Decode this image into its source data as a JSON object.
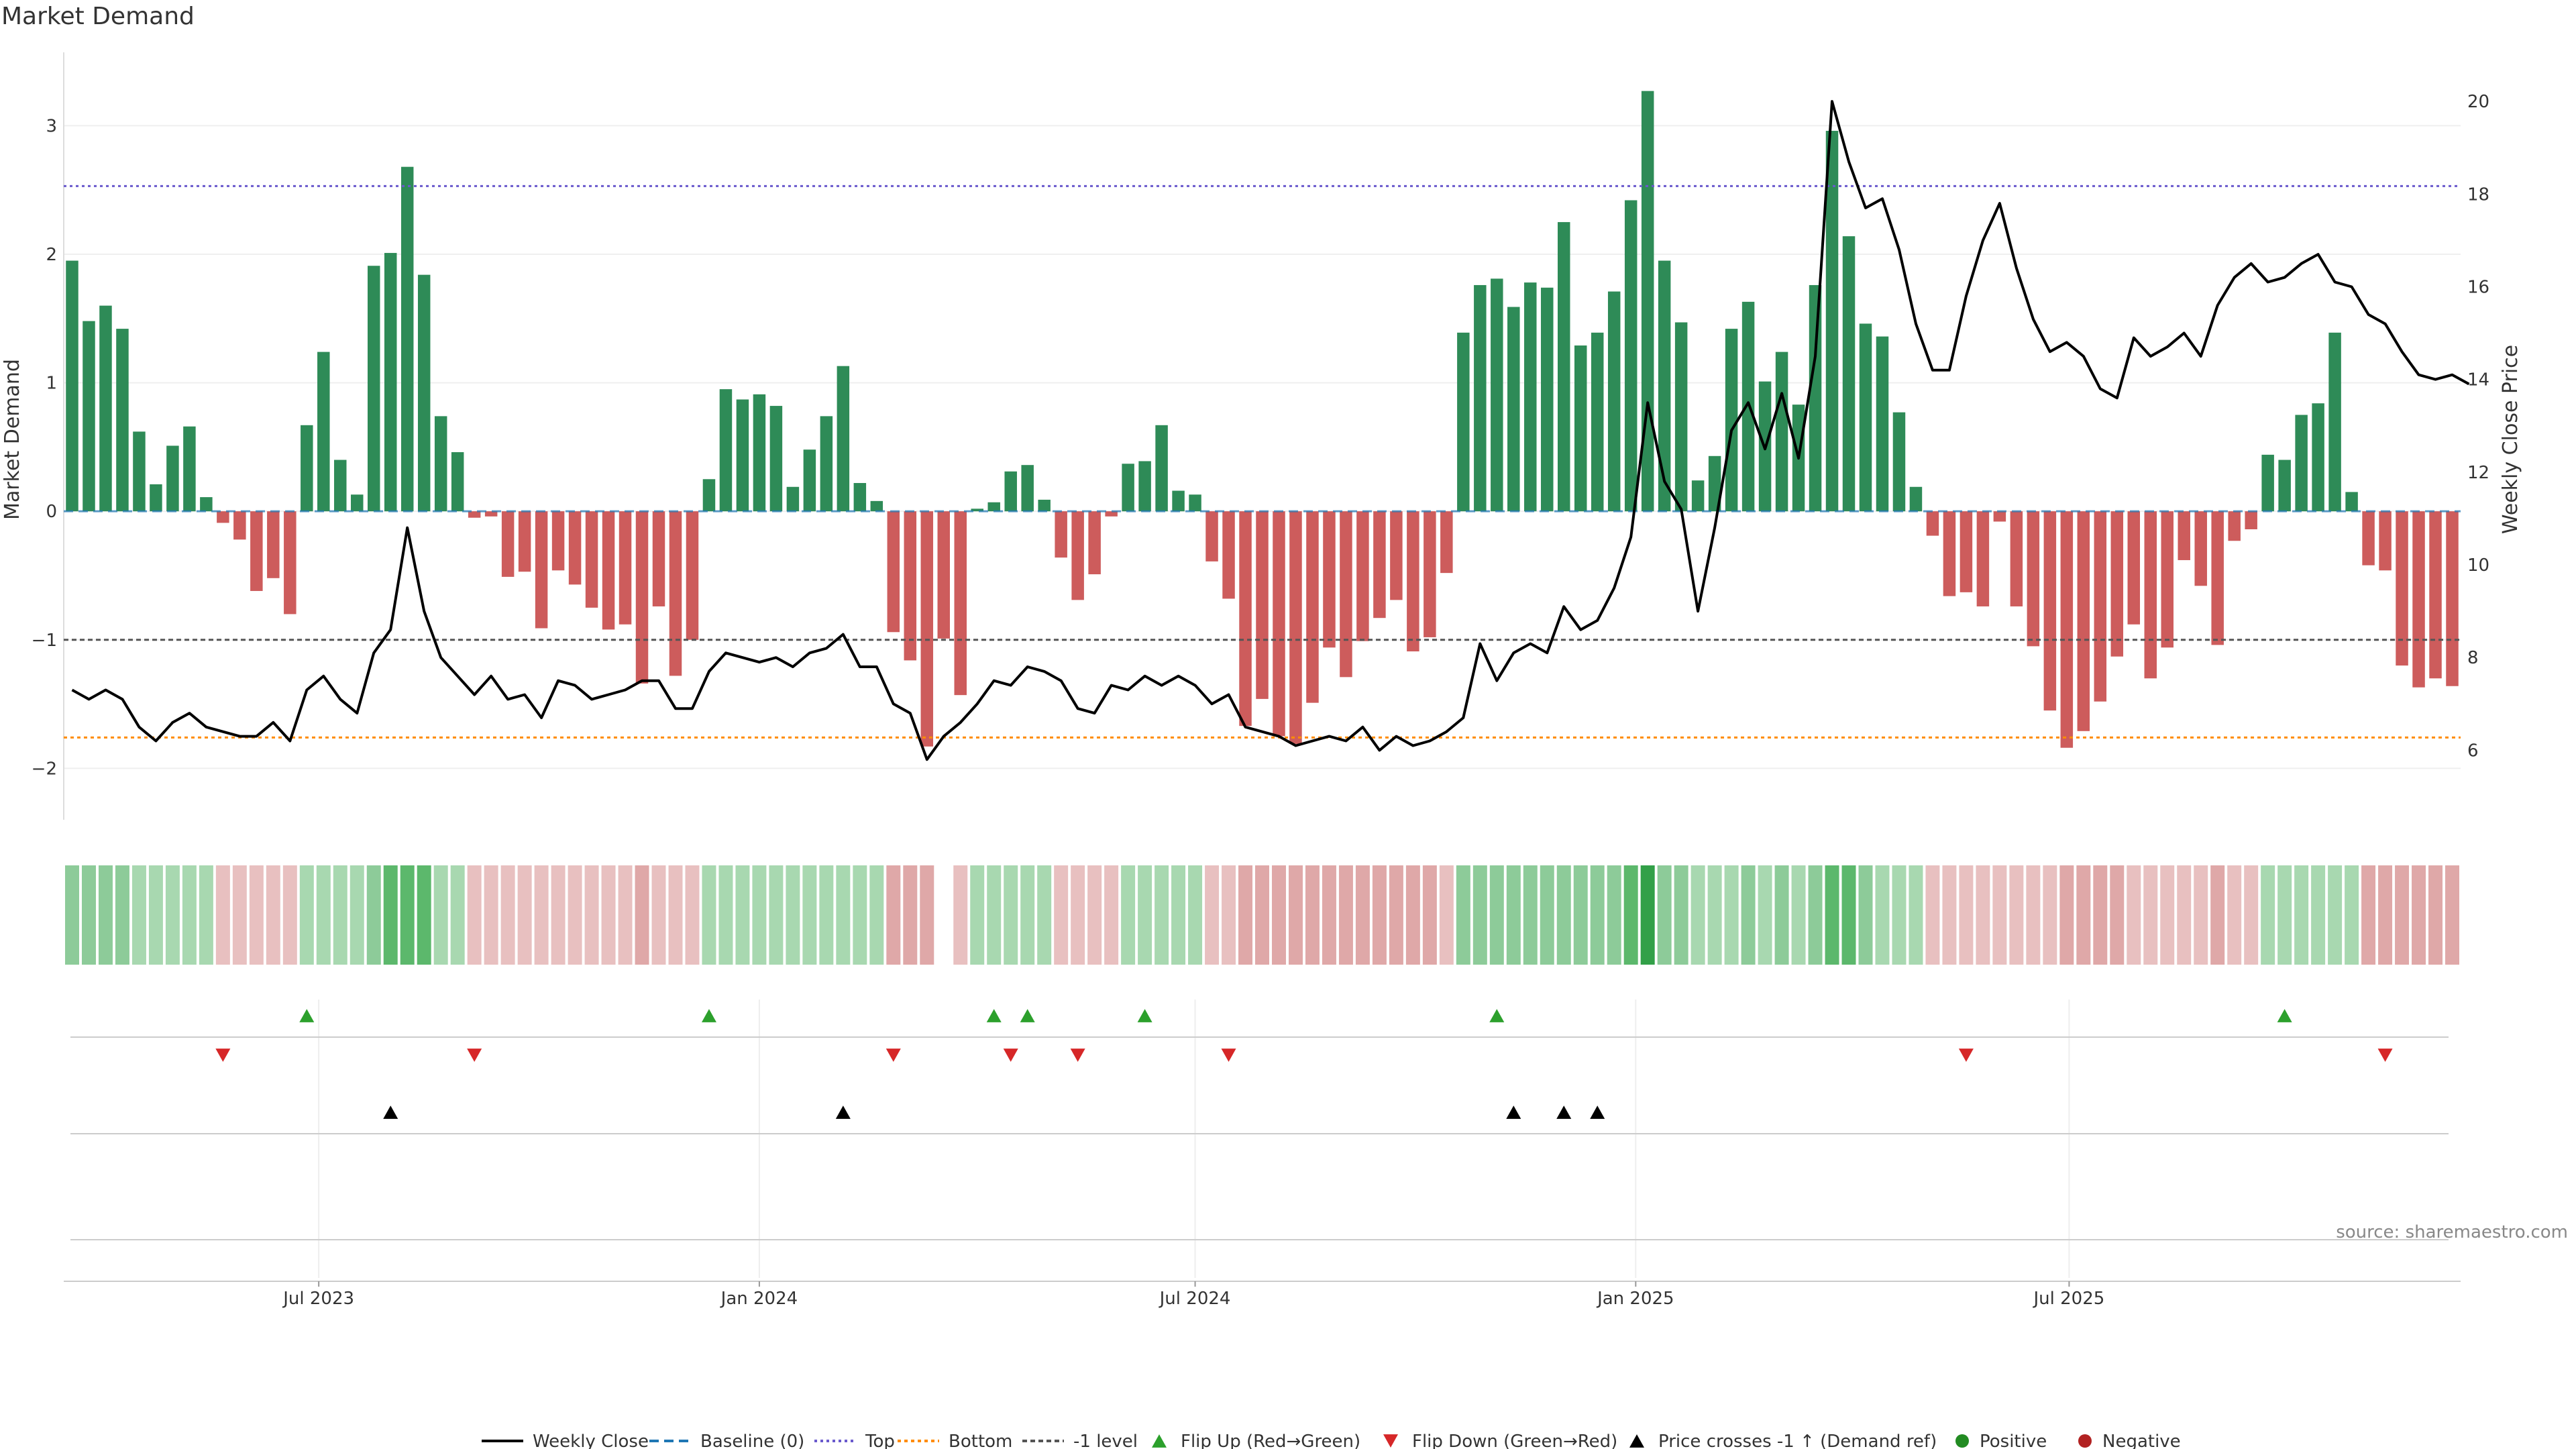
{
  "chart_data": {
    "type": "bar",
    "title": "Market Demand",
    "ylabel": "Market Demand",
    "y2label": "Weekly Close Price",
    "ylim": [
      -2.4,
      3.55
    ],
    "y2lim": [
      4.5,
      21.0
    ],
    "yticks": [
      -2,
      -1,
      0,
      1,
      2,
      3
    ],
    "y2ticks": [
      6,
      8,
      10,
      12,
      14,
      16,
      18,
      20
    ],
    "reference_lines": {
      "baseline": 0,
      "top": 2.53,
      "bottom": -1.76,
      "minus1": -1
    },
    "x_dates": [
      "2023-03-20",
      "2023-03-27",
      "2023-04-03",
      "2023-04-10",
      "2023-04-17",
      "2023-04-24",
      "2023-05-01",
      "2023-05-08",
      "2023-05-15",
      "2023-05-22",
      "2023-05-29",
      "2023-06-05",
      "2023-06-12",
      "2023-06-19",
      "2023-06-26",
      "2023-07-03",
      "2023-07-10",
      "2023-07-17",
      "2023-07-24",
      "2023-07-31",
      "2023-08-07",
      "2023-08-14",
      "2023-08-21",
      "2023-08-28",
      "2023-09-04",
      "2023-09-11",
      "2023-09-18",
      "2023-09-25",
      "2023-10-02",
      "2023-10-09",
      "2023-10-16",
      "2023-10-23",
      "2023-10-30",
      "2023-11-06",
      "2023-11-13",
      "2023-11-20",
      "2023-11-27",
      "2023-12-04",
      "2023-12-11",
      "2023-12-18",
      "2023-12-25",
      "2024-01-01",
      "2024-01-08",
      "2024-01-15",
      "2024-01-22",
      "2024-01-29",
      "2024-02-05",
      "2024-02-12",
      "2024-02-19",
      "2024-02-26",
      "2024-03-04",
      "2024-03-11",
      "2024-03-18",
      "2024-03-25",
      "2024-04-01",
      "2024-04-08",
      "2024-04-15",
      "2024-04-22",
      "2024-04-29",
      "2024-05-06",
      "2024-05-13",
      "2024-05-20",
      "2024-05-27",
      "2024-06-03",
      "2024-06-10",
      "2024-06-17",
      "2024-06-24",
      "2024-07-01",
      "2024-07-08",
      "2024-07-15",
      "2024-07-22",
      "2024-07-29",
      "2024-08-05",
      "2024-08-12",
      "2024-08-19",
      "2024-08-26",
      "2024-09-02",
      "2024-09-09",
      "2024-09-16",
      "2024-09-23",
      "2024-09-30",
      "2024-10-07",
      "2024-10-14",
      "2024-10-21",
      "2024-10-28",
      "2024-11-04",
      "2024-11-11",
      "2024-11-18",
      "2024-11-25",
      "2024-12-02",
      "2024-12-09",
      "2024-12-16",
      "2024-12-23",
      "2024-12-30",
      "2025-01-06",
      "2025-01-13",
      "2025-01-20",
      "2025-01-27",
      "2025-02-03",
      "2025-02-10",
      "2025-02-17",
      "2025-02-24",
      "2025-03-03",
      "2025-03-10",
      "2025-03-17",
      "2025-03-24",
      "2025-03-31",
      "2025-04-07",
      "2025-04-14",
      "2025-04-21",
      "2025-04-28",
      "2025-05-05",
      "2025-05-12",
      "2025-05-19",
      "2025-05-26",
      "2025-06-02",
      "2025-06-09",
      "2025-06-16",
      "2025-06-23",
      "2025-06-30",
      "2025-07-07",
      "2025-07-14",
      "2025-07-21",
      "2025-07-28",
      "2025-08-04",
      "2025-08-11",
      "2025-08-18",
      "2025-08-25",
      "2025-09-01",
      "2025-09-08",
      "2025-09-15",
      "2025-09-22",
      "2025-09-29",
      "2025-10-06",
      "2025-10-13",
      "2025-10-20",
      "2025-10-27",
      "2025-11-03",
      "2025-11-10",
      "2025-11-17",
      "2025-11-24",
      "2025-12-01",
      "2025-12-08",
      "2025-12-15"
    ],
    "demand": [
      1.95,
      1.48,
      1.6,
      1.42,
      0.62,
      0.21,
      0.51,
      0.66,
      0.11,
      -0.09,
      -0.22,
      -0.62,
      -0.52,
      -0.8,
      0.67,
      1.24,
      0.4,
      0.13,
      1.91,
      2.01,
      2.68,
      1.84,
      0.74,
      0.46,
      -0.05,
      -0.04,
      -0.51,
      -0.47,
      -0.91,
      -0.46,
      -0.57,
      -0.75,
      -0.92,
      -0.88,
      -1.34,
      -0.74,
      -1.28,
      -1.0,
      0.25,
      0.95,
      0.87,
      0.91,
      0.82,
      0.19,
      0.48,
      0.74,
      1.13,
      0.22,
      0.08,
      -0.94,
      -1.16,
      -1.83,
      -0.99,
      -1.43,
      0.02,
      0.07,
      0.31,
      0.36,
      0.09,
      -0.36,
      -0.69,
      -0.49,
      -0.04,
      0.37,
      0.39,
      0.67,
      0.16,
      0.13,
      -0.39,
      -0.68,
      -1.67,
      -1.46,
      -1.75,
      -1.81,
      -1.49,
      -1.06,
      -1.29,
      -1.01,
      -0.83,
      -0.69,
      -1.09,
      -0.98,
      -0.48,
      1.39,
      1.76,
      1.81,
      1.59,
      1.78,
      1.74,
      2.25,
      1.29,
      1.39,
      1.71,
      2.42,
      3.27,
      1.95,
      1.47,
      0.24,
      0.43,
      1.42,
      1.63,
      1.01,
      1.24,
      0.83,
      1.76,
      2.96,
      2.14,
      1.46,
      1.36,
      0.77,
      0.19,
      -0.19,
      -0.66,
      -0.63,
      -0.74,
      -0.08,
      -0.74,
      -1.05,
      -1.55,
      -1.84,
      -1.71,
      -1.48,
      -1.13,
      -0.88,
      -1.3,
      -1.06,
      -0.38,
      -0.58,
      -1.04,
      -0.23,
      -0.14,
      0.44,
      0.4,
      0.75,
      0.84,
      1.39,
      0.15,
      -0.42,
      -0.46,
      -1.2,
      -1.37,
      -1.3,
      -1.36
    ],
    "close": [
      7.3,
      7.1,
      7.3,
      7.1,
      6.5,
      6.2,
      6.6,
      6.8,
      6.5,
      6.4,
      6.3,
      6.3,
      6.6,
      6.2,
      7.3,
      7.6,
      7.1,
      6.8,
      8.1,
      8.6,
      10.8,
      9.0,
      8.0,
      7.6,
      7.2,
      7.6,
      7.1,
      7.2,
      6.7,
      7.5,
      7.4,
      7.1,
      7.2,
      7.3,
      7.5,
      7.5,
      6.9,
      6.9,
      7.7,
      8.1,
      8.0,
      7.9,
      8.0,
      7.8,
      8.1,
      8.2,
      8.5,
      7.8,
      7.8,
      7.0,
      6.8,
      5.8,
      6.3,
      6.6,
      7.0,
      7.5,
      7.4,
      7.8,
      7.7,
      7.5,
      6.9,
      6.8,
      7.4,
      7.3,
      7.6,
      7.4,
      7.6,
      7.4,
      7.0,
      7.2,
      6.5,
      6.4,
      6.3,
      6.1,
      6.2,
      6.3,
      6.2,
      6.5,
      6.0,
      6.3,
      6.1,
      6.2,
      6.4,
      6.7,
      8.3,
      7.5,
      8.1,
      8.3,
      8.1,
      9.1,
      8.6,
      8.8,
      9.5,
      10.6,
      13.5,
      11.8,
      11.2,
      9.0,
      10.8,
      12.9,
      13.5,
      12.5,
      13.7,
      12.3,
      14.5,
      20.0,
      18.7,
      17.7,
      17.9,
      16.8,
      15.2,
      14.2,
      14.2,
      15.8,
      17.0,
      17.8,
      16.4,
      15.3,
      14.6,
      14.8,
      14.5,
      13.8,
      13.6,
      14.9,
      14.5,
      14.7,
      15.0,
      14.5,
      15.6,
      16.2,
      16.5,
      16.1,
      16.2,
      16.5,
      16.7,
      16.1,
      16.0,
      15.4,
      15.2,
      14.6,
      14.1,
      14.0,
      14.1,
      13.9
    ],
    "shade_levels": [
      2,
      2,
      2,
      2,
      1,
      1,
      1,
      1,
      1,
      1,
      1,
      1,
      1,
      1,
      1,
      1,
      1,
      1,
      2,
      3,
      3,
      3,
      1,
      1,
      1,
      1,
      1,
      1,
      1,
      1,
      1,
      1,
      1,
      1,
      2,
      1,
      1,
      1,
      1,
      1,
      1,
      1,
      1,
      1,
      1,
      1,
      1,
      1,
      1,
      2,
      2,
      2,
      null,
      1,
      1,
      1,
      1,
      1,
      1,
      1,
      1,
      1,
      1,
      1,
      1,
      1,
      1,
      1,
      1,
      1,
      2,
      2,
      2,
      2,
      2,
      2,
      2,
      2,
      2,
      2,
      2,
      2,
      1,
      2,
      2,
      2,
      2,
      2,
      2,
      2,
      2,
      2,
      2,
      3,
      4,
      2,
      2,
      1,
      1,
      1,
      2,
      1,
      2,
      1,
      2,
      3,
      3,
      2,
      1,
      1,
      1,
      1,
      1,
      1,
      1,
      1,
      1,
      1,
      1,
      2,
      2,
      2,
      2,
      1,
      1,
      1,
      1,
      1,
      2,
      1,
      1,
      1,
      1,
      1,
      1,
      1,
      1,
      2,
      2,
      2,
      2,
      2,
      2
    ],
    "flip_up_idx": [
      14,
      38,
      55,
      57,
      64,
      85,
      132
    ],
    "flip_down_idx": [
      9,
      24,
      49,
      56,
      60,
      69,
      113,
      138
    ],
    "price_cross_idx": [
      19,
      46,
      86,
      89,
      91
    ],
    "x_tick_labels": [
      "Jul 2023",
      "Jan 2024",
      "Jul 2024",
      "Jan 2025",
      "Jul 2025"
    ],
    "x_tick_dates": [
      "2023-07-01",
      "2024-01-01",
      "2024-07-01",
      "2025-01-01",
      "2025-07-01"
    ],
    "legend": [
      "Weekly Close",
      "Baseline (0)",
      "Top",
      "Bottom",
      "-1 level",
      "Flip Up (Red→Green)",
      "Flip Down (Green→Red)",
      "Price crosses -1 ↑ (Demand ref)",
      "Positive",
      "Negative"
    ],
    "legend_placement": "bottom-center",
    "source": "source: sharemaestro.com"
  },
  "colors": {
    "positive_bar": "#2e8b57",
    "negative_bar": "#cd5c5c",
    "close_line": "#000000",
    "baseline": "#1f77b4",
    "top_line": "#6a5acd",
    "bottom_line": "#ff8c00",
    "minus1_line": "#555555",
    "flip_up": "#2ca02c",
    "flip_down": "#d62728",
    "price_cross": "#000000",
    "positive_dot": "#228b22",
    "negative_dot": "#b22222"
  }
}
